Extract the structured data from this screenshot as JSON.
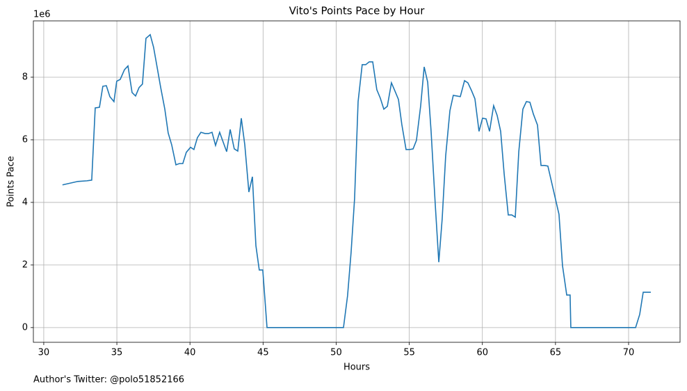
{
  "chart_data": {
    "type": "line",
    "title": "Vito's Points Pace by Hour",
    "x_label": "Hours",
    "y_label": "Points Pace",
    "y_offset_label": "1e6",
    "footnote": "Author's Twitter: @polo51852166",
    "grid": true,
    "xlim": [
      29.29,
      73.52
    ],
    "ylim": [
      -0.47,
      9.8
    ],
    "xticks": [
      30,
      35,
      40,
      45,
      50,
      55,
      60,
      65,
      70
    ],
    "yticks": [
      0,
      2,
      4,
      6,
      8
    ],
    "series": [
      {
        "color": "#1f77b4",
        "x": [
          31.28,
          32.33,
          32.95,
          33.28,
          33.52,
          33.81,
          34.04,
          34.28,
          34.52,
          34.8,
          34.99,
          35.23,
          35.52,
          35.76,
          36.04,
          36.28,
          36.52,
          36.75,
          36.99,
          37.28,
          37.51,
          37.75,
          37.99,
          38.28,
          38.51,
          38.75,
          39.04,
          39.27,
          39.51,
          39.75,
          40.04,
          40.27,
          40.51,
          40.75,
          41.03,
          41.27,
          41.51,
          41.75,
          42.03,
          42.27,
          42.51,
          42.75,
          43.03,
          43.27,
          43.51,
          43.75,
          44.03,
          44.27,
          44.51,
          44.74,
          44.98,
          45.27,
          50.5,
          50.78,
          51.02,
          51.26,
          51.5,
          51.78,
          52.02,
          52.26,
          52.5,
          52.78,
          53.02,
          53.26,
          53.5,
          53.78,
          54.02,
          54.26,
          54.49,
          54.78,
          55.02,
          55.26,
          55.49,
          55.78,
          56.02,
          56.26,
          56.49,
          56.78,
          57.02,
          57.25,
          57.49,
          57.78,
          58.01,
          58.25,
          58.49,
          58.78,
          59.01,
          59.25,
          59.49,
          59.77,
          60.01,
          60.25,
          60.49,
          60.77,
          61.01,
          61.25,
          61.49,
          61.77,
          62.01,
          62.25,
          62.49,
          62.77,
          63.01,
          63.25,
          63.49,
          63.77,
          64.01,
          64.25,
          64.48,
          65.24,
          65.48,
          65.77,
          66.0,
          66.05,
          70.48,
          70.76,
          71.0,
          71.52
        ],
        "values": [
          4.56,
          4.67,
          4.69,
          4.71,
          7.02,
          7.04,
          7.71,
          7.73,
          7.38,
          7.22,
          7.87,
          7.93,
          8.24,
          8.36,
          7.51,
          7.4,
          7.67,
          7.78,
          9.24,
          9.36,
          8.96,
          8.33,
          7.69,
          6.98,
          6.22,
          5.84,
          5.2,
          5.24,
          5.24,
          5.6,
          5.76,
          5.69,
          6.07,
          6.24,
          6.2,
          6.2,
          6.24,
          5.82,
          6.24,
          5.93,
          5.62,
          6.33,
          5.71,
          5.64,
          6.69,
          5.84,
          4.33,
          4.82,
          2.62,
          1.84,
          1.84,
          0,
          0,
          1.02,
          2.4,
          4.13,
          7.22,
          8.4,
          8.4,
          8.49,
          8.49,
          7.6,
          7.33,
          6.98,
          7.07,
          7.82,
          7.56,
          7.29,
          6.49,
          5.69,
          5.69,
          5.71,
          5.98,
          7.09,
          8.33,
          7.84,
          6.29,
          3.91,
          2.09,
          3.47,
          5.49,
          6.93,
          7.42,
          7.4,
          7.38,
          7.89,
          7.82,
          7.58,
          7.31,
          6.27,
          6.69,
          6.67,
          6.27,
          7.09,
          6.78,
          6.27,
          4.91,
          3.6,
          3.6,
          3.53,
          5.62,
          6.98,
          7.22,
          7.2,
          6.82,
          6.47,
          5.18,
          5.18,
          5.16,
          3.62,
          1.98,
          1.04,
          1.04,
          0,
          0,
          0.42,
          1.13,
          1.13
        ]
      }
    ]
  }
}
